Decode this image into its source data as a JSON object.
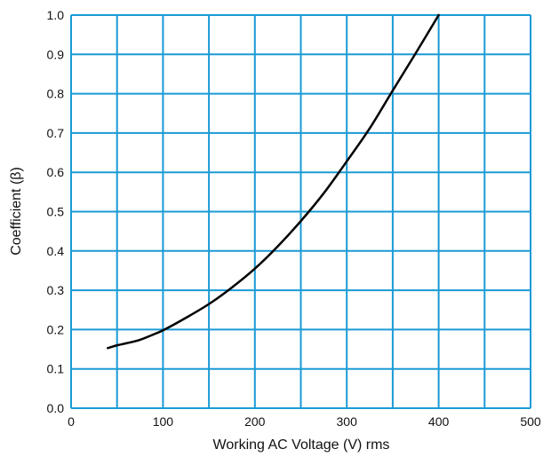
{
  "chart_data": {
    "type": "line",
    "title": "",
    "xlabel": "Working AC Voltage (V) rms",
    "ylabel": "Coefficient (β)",
    "xlim": [
      0,
      500
    ],
    "ylim": [
      0,
      1.0
    ],
    "grid": true,
    "legend": "none",
    "x_ticks": [
      0,
      100,
      200,
      300,
      400,
      500
    ],
    "x_tick_labels": [
      "0",
      "100",
      "200",
      "300",
      "400",
      "500"
    ],
    "x_minor_gridlines": [
      50,
      150,
      250,
      350,
      450
    ],
    "y_ticks": [
      0.0,
      0.1,
      0.2,
      0.3,
      0.4,
      0.5,
      0.6,
      0.7,
      0.8,
      0.9,
      1.0
    ],
    "y_tick_labels": [
      "0.0",
      "0.1",
      "0.2",
      "0.3",
      "0.4",
      "0.5",
      "0.6",
      "0.7",
      "0.8",
      "0.9",
      "1.0"
    ],
    "colors": {
      "grid": "#1a9ad6",
      "line": "#000000",
      "text": "#111111"
    },
    "series": [
      {
        "x": [
          40,
          50,
          60,
          75,
          90,
          100,
          125,
          150,
          175,
          200,
          225,
          250,
          275,
          300,
          325,
          350,
          375,
          400
        ],
        "y": [
          0.153,
          0.16,
          0.165,
          0.174,
          0.188,
          0.198,
          0.23,
          0.265,
          0.307,
          0.355,
          0.412,
          0.476,
          0.547,
          0.628,
          0.712,
          0.808,
          0.903,
          1.0
        ]
      }
    ]
  }
}
